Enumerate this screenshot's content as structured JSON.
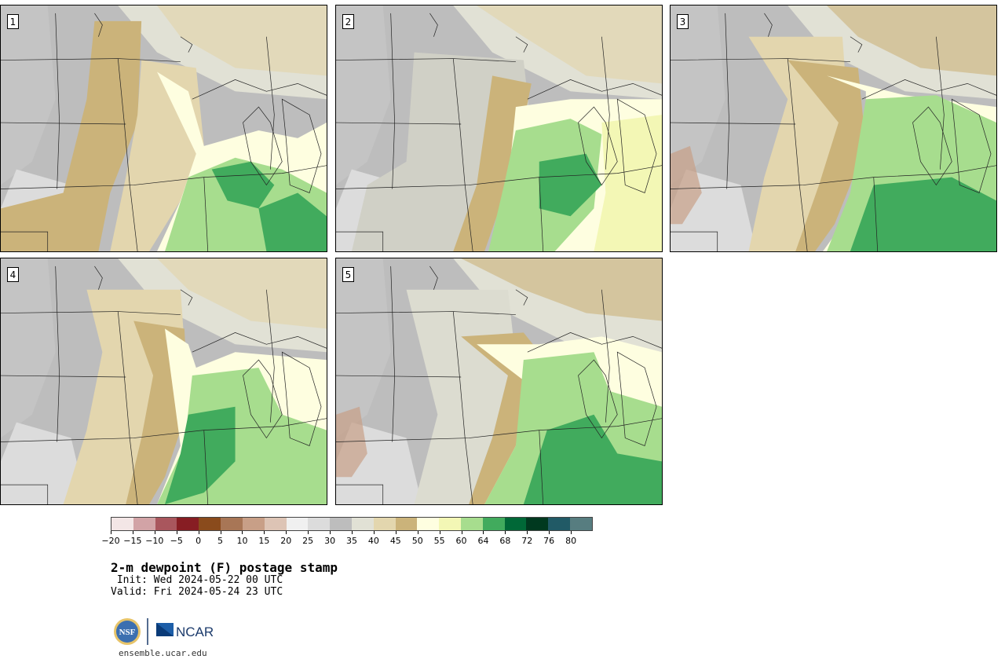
{
  "panels": [
    {
      "label": "1"
    },
    {
      "label": "2"
    },
    {
      "label": "3"
    },
    {
      "label": "4"
    },
    {
      "label": "5"
    }
  ],
  "colorbar": {
    "tick_labels": [
      "−20",
      "−15",
      "−10",
      "−5",
      "0",
      "5",
      "10",
      "15",
      "20",
      "25",
      "30",
      "35",
      "40",
      "45",
      "50",
      "55",
      "60",
      "64",
      "68",
      "72",
      "76",
      "80"
    ],
    "colors": [
      "#f3e6e6",
      "#d2a3a6",
      "#a9565d",
      "#871d23",
      "#8a4b1c",
      "#a87656",
      "#c89f87",
      "#ddc4b5",
      "#f0f0f0",
      "#dcdcdc",
      "#bdbdbd",
      "#e1e1d5",
      "#e3d6ae",
      "#cbb37a",
      "#fefee0",
      "#f3f7b5",
      "#a7dd8e",
      "#41ab5d",
      "#006837",
      "#00391f",
      "#215a66",
      "#577d80"
    ]
  },
  "title": "2-m dewpoint (F) postage stamp",
  "init_line": " Init: Wed 2024-05-22 00 UTC",
  "valid_line": "Valid: Fri 2024-05-24 23 UTC",
  "logos": {
    "nsf": "NSF",
    "ncar": "NCAR"
  },
  "site": "ensemble.ucar.edu"
}
